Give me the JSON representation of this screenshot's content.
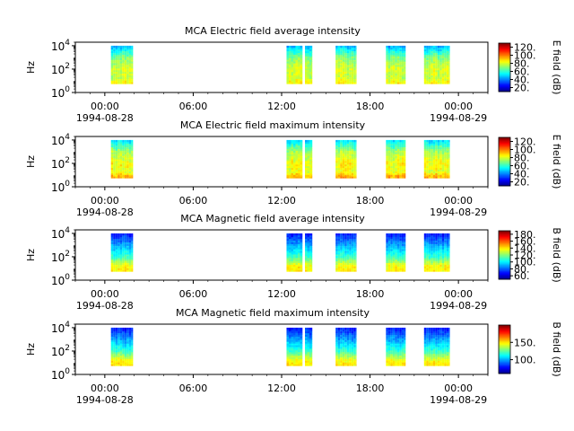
{
  "figure": {
    "colors": {
      "frame": "#000000",
      "colormap": [
        "#00007f",
        "#0000ff",
        "#007fff",
        "#00ffff",
        "#7fff7f",
        "#ffff00",
        "#ff7f00",
        "#ff0000",
        "#7f0000"
      ]
    }
  },
  "chart_data": [
    {
      "type": "heatmap",
      "title": "MCA  Electric field average intensity",
      "ylabel": "Hz",
      "y_scale": "log",
      "ylim": [
        1,
        20000
      ],
      "yticks": [
        {
          "value": 1,
          "label": "10^0"
        },
        {
          "value": 100,
          "label": "10^2"
        },
        {
          "value": 10000,
          "label": "10^4"
        }
      ],
      "xlim": [
        "1994-08-27T22:00",
        "1994-08-29T02:00"
      ],
      "xticks": [
        {
          "value": "1994-08-28T00:00",
          "label": "00:00",
          "date": "1994-08-28"
        },
        {
          "value": "1994-08-28T06:00",
          "label": "06:00"
        },
        {
          "value": "1994-08-28T12:00",
          "label": "12:00"
        },
        {
          "value": "1994-08-28T18:00",
          "label": "18:00"
        },
        {
          "value": "1994-08-29T00:00",
          "label": "00:00",
          "date": "1994-08-29"
        }
      ],
      "colorbar": {
        "label": "E field (dB)",
        "range": [
          10,
          130
        ],
        "ticks": [
          20,
          40,
          60,
          80,
          100,
          120
        ],
        "tick_labels": [
          "20.",
          "40.",
          "60.",
          "80.",
          "100.",
          "120."
        ]
      },
      "data_freq_range": [
        5.6,
        10000
      ],
      "segments": [
        [
          "1994-08-28T00:25",
          "1994-08-28T01:55"
        ],
        [
          "1994-08-28T12:20",
          "1994-08-28T13:25"
        ],
        [
          "1994-08-28T13:35",
          "1994-08-28T14:05"
        ],
        [
          "1994-08-28T15:40",
          "1994-08-28T17:05"
        ],
        [
          "1994-08-28T19:05",
          "1994-08-28T20:25"
        ],
        [
          "1994-08-28T21:40",
          "1994-08-28T23:25"
        ]
      ],
      "intensity_profile_db": [
        {
          "freq_hz": 10000,
          "db": 45
        },
        {
          "freq_hz": 1000,
          "db": 70
        },
        {
          "freq_hz": 100,
          "db": 80
        },
        {
          "freq_hz": 20,
          "db": 78
        },
        {
          "freq_hz": 8,
          "db": 85
        }
      ]
    },
    {
      "type": "heatmap",
      "title": "MCA  Electric field maximum intensity",
      "ylabel": "Hz",
      "y_scale": "log",
      "ylim": [
        1,
        20000
      ],
      "yticks": [
        {
          "value": 1,
          "label": "10^0"
        },
        {
          "value": 100,
          "label": "10^2"
        },
        {
          "value": 10000,
          "label": "10^4"
        }
      ],
      "xlim": [
        "1994-08-27T22:00",
        "1994-08-29T02:00"
      ],
      "xticks": [
        {
          "value": "1994-08-28T00:00",
          "label": "00:00",
          "date": "1994-08-28"
        },
        {
          "value": "1994-08-28T06:00",
          "label": "06:00"
        },
        {
          "value": "1994-08-28T12:00",
          "label": "12:00"
        },
        {
          "value": "1994-08-28T18:00",
          "label": "18:00"
        },
        {
          "value": "1994-08-29T00:00",
          "label": "00:00",
          "date": "1994-08-29"
        }
      ],
      "colorbar": {
        "label": "E field (dB)",
        "range": [
          10,
          130
        ],
        "ticks": [
          20,
          40,
          60,
          80,
          100,
          120
        ],
        "tick_labels": [
          "20.",
          "40.",
          "60.",
          "80.",
          "100.",
          "120."
        ]
      },
      "data_freq_range": [
        5.6,
        10000
      ],
      "segments": [
        [
          "1994-08-28T00:25",
          "1994-08-28T01:55"
        ],
        [
          "1994-08-28T12:20",
          "1994-08-28T13:25"
        ],
        [
          "1994-08-28T13:35",
          "1994-08-28T14:05"
        ],
        [
          "1994-08-28T15:40",
          "1994-08-28T17:05"
        ],
        [
          "1994-08-28T19:05",
          "1994-08-28T20:25"
        ],
        [
          "1994-08-28T21:40",
          "1994-08-28T23:25"
        ]
      ],
      "intensity_profile_db": [
        {
          "freq_hz": 10000,
          "db": 50
        },
        {
          "freq_hz": 1000,
          "db": 75
        },
        {
          "freq_hz": 100,
          "db": 85
        },
        {
          "freq_hz": 20,
          "db": 82
        },
        {
          "freq_hz": 8,
          "db": 95
        }
      ]
    },
    {
      "type": "heatmap",
      "title": "MCA  Magnetic field average intensity",
      "ylabel": "Hz",
      "y_scale": "log",
      "ylim": [
        1,
        20000
      ],
      "yticks": [
        {
          "value": 1,
          "label": "10^0"
        },
        {
          "value": 100,
          "label": "10^2"
        },
        {
          "value": 10000,
          "label": "10^4"
        }
      ],
      "xlim": [
        "1994-08-27T22:00",
        "1994-08-29T02:00"
      ],
      "xticks": [
        {
          "value": "1994-08-28T00:00",
          "label": "00:00",
          "date": "1994-08-28"
        },
        {
          "value": "1994-08-28T06:00",
          "label": "06:00"
        },
        {
          "value": "1994-08-28T12:00",
          "label": "12:00"
        },
        {
          "value": "1994-08-28T18:00",
          "label": "18:00"
        },
        {
          "value": "1994-08-29T00:00",
          "label": "00:00",
          "date": "1994-08-29"
        }
      ],
      "colorbar": {
        "label": "B field (dB)",
        "range": [
          50,
          190
        ],
        "ticks": [
          60,
          80,
          100,
          120,
          140,
          160,
          180
        ],
        "tick_labels": [
          "60.",
          "80.",
          "100.",
          "120.",
          "140.",
          "160.",
          "180."
        ]
      },
      "data_freq_range": [
        5.6,
        10000
      ],
      "segments": [
        [
          "1994-08-28T00:25",
          "1994-08-28T01:55"
        ],
        [
          "1994-08-28T12:20",
          "1994-08-28T13:25"
        ],
        [
          "1994-08-28T13:35",
          "1994-08-28T14:05"
        ],
        [
          "1994-08-28T15:40",
          "1994-08-28T17:05"
        ],
        [
          "1994-08-28T19:05",
          "1994-08-28T20:25"
        ],
        [
          "1994-08-28T21:40",
          "1994-08-28T23:25"
        ]
      ],
      "intensity_profile_db": [
        {
          "freq_hz": 10000,
          "db": 70
        },
        {
          "freq_hz": 1000,
          "db": 90
        },
        {
          "freq_hz": 100,
          "db": 110
        },
        {
          "freq_hz": 20,
          "db": 135
        },
        {
          "freq_hz": 8,
          "db": 140
        }
      ]
    },
    {
      "type": "heatmap",
      "title": "MCA  Magnetic field maximum intensity",
      "ylabel": "Hz",
      "y_scale": "log",
      "ylim": [
        1,
        20000
      ],
      "yticks": [
        {
          "value": 1,
          "label": "10^0"
        },
        {
          "value": 100,
          "label": "10^2"
        },
        {
          "value": 10000,
          "label": "10^4"
        }
      ],
      "xlim": [
        "1994-08-27T22:00",
        "1994-08-29T02:00"
      ],
      "xticks": [
        {
          "value": "1994-08-28T00:00",
          "label": "00:00",
          "date": "1994-08-28"
        },
        {
          "value": "1994-08-28T06:00",
          "label": "06:00"
        },
        {
          "value": "1994-08-28T12:00",
          "label": "12:00"
        },
        {
          "value": "1994-08-28T18:00",
          "label": "18:00"
        },
        {
          "value": "1994-08-29T00:00",
          "label": "00:00",
          "date": "1994-08-29"
        }
      ],
      "colorbar": {
        "label": "B field (dB)",
        "range": [
          60,
          200
        ],
        "ticks": [
          100,
          150
        ],
        "tick_labels": [
          "100.",
          "150."
        ]
      },
      "data_freq_range": [
        5.6,
        10000
      ],
      "segments": [
        [
          "1994-08-28T00:25",
          "1994-08-28T01:55"
        ],
        [
          "1994-08-28T12:20",
          "1994-08-28T13:25"
        ],
        [
          "1994-08-28T13:35",
          "1994-08-28T14:05"
        ],
        [
          "1994-08-28T15:40",
          "1994-08-28T17:05"
        ],
        [
          "1994-08-28T19:05",
          "1994-08-28T20:25"
        ],
        [
          "1994-08-28T21:40",
          "1994-08-28T23:25"
        ]
      ],
      "intensity_profile_db": [
        {
          "freq_hz": 10000,
          "db": 80
        },
        {
          "freq_hz": 1000,
          "db": 100
        },
        {
          "freq_hz": 100,
          "db": 120
        },
        {
          "freq_hz": 20,
          "db": 145
        },
        {
          "freq_hz": 8,
          "db": 150
        }
      ]
    }
  ]
}
